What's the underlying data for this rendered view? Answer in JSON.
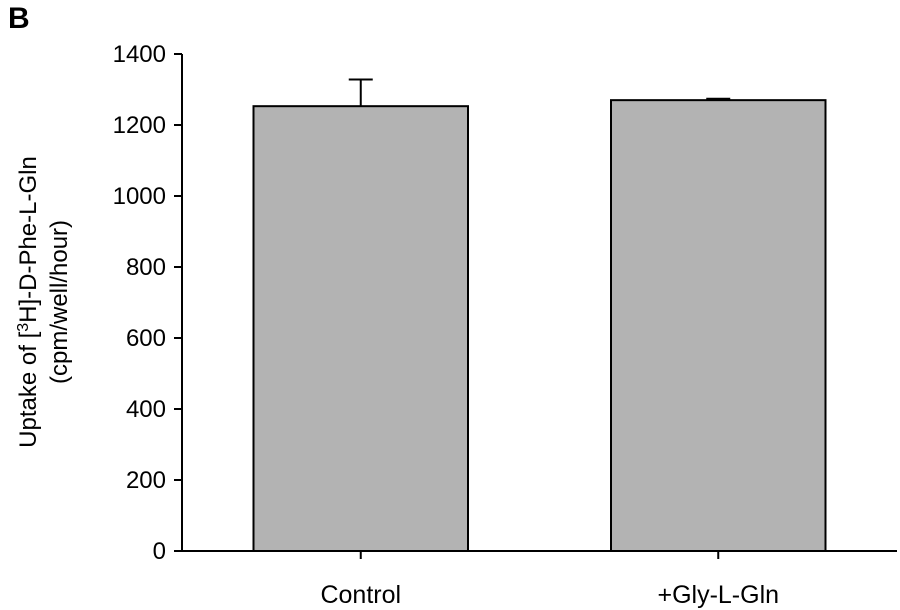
{
  "panel_label": "B",
  "chart_data": {
    "type": "bar",
    "categories": [
      "Control",
      "+Gly-L-Gln"
    ],
    "values": [
      1253,
      1270
    ],
    "errors": [
      75,
      4
    ],
    "ylabel_line1_pre": "Uptake of [",
    "ylabel_line1_sup": "3",
    "ylabel_line1_post": "H]-D-Phe-L-Gln",
    "ylabel_line2": "(cpm/well/hour)",
    "ylim": [
      0,
      1400
    ],
    "yticks": [
      0,
      200,
      400,
      600,
      800,
      1000,
      1200,
      1400
    ],
    "grid": false,
    "bar_color": "#b3b3b3"
  }
}
